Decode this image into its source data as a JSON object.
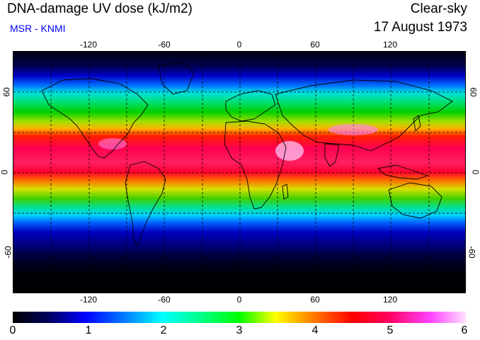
{
  "header": {
    "title": "DNA-damage UV dose (kJ/m2)",
    "subtitle": "MSR - KNMI",
    "sky": "Clear-sky",
    "date": "17 August 1973"
  },
  "map": {
    "x_ticks": [
      "-120",
      "-60",
      "0",
      "60",
      "120"
    ],
    "y_ticks": [
      "60",
      "0",
      "-60"
    ],
    "lon_range": [
      -180,
      180
    ],
    "lat_range": [
      -90,
      90
    ]
  },
  "colorbar": {
    "ticks": [
      "0",
      "1",
      "2",
      "3",
      "4",
      "5",
      "6"
    ],
    "range": [
      0,
      6
    ],
    "colors": [
      "#000000",
      "#0000ff",
      "#00ffff",
      "#00ff00",
      "#ffff00",
      "#ff0000",
      "#ff40ff",
      "#ffe0ff"
    ]
  }
}
